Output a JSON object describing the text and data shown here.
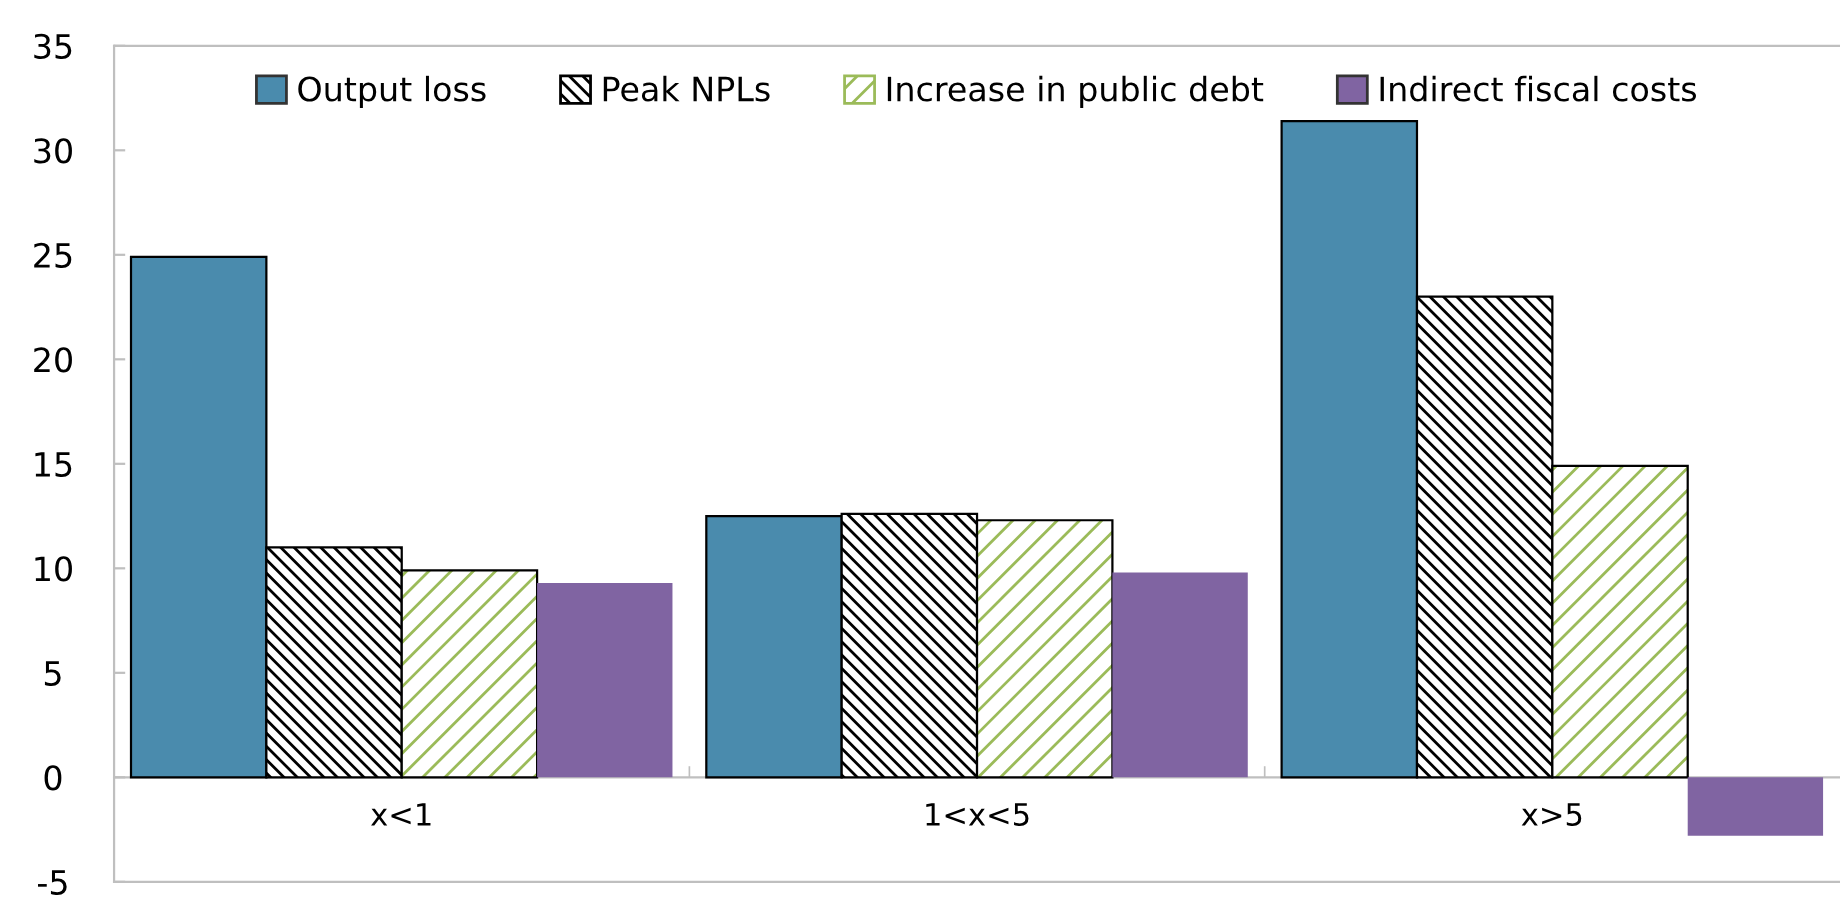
{
  "chart_data": {
    "type": "bar",
    "categories": [
      "x<1",
      "1<x<5",
      "x>5"
    ],
    "series": [
      {
        "name": "Output loss",
        "color": "#4a8bad",
        "values": [
          24.9,
          12.5,
          31.4
        ]
      },
      {
        "name": "Peak NPLs",
        "color": "#000000",
        "values": [
          11.0,
          12.6,
          23.0
        ]
      },
      {
        "name": "Increase in public debt",
        "color": "#9bbb59",
        "values": [
          9.9,
          12.3,
          14.9
        ]
      },
      {
        "name": "Indirect fiscal costs",
        "color": "#8064a2",
        "values": [
          9.3,
          9.8,
          -2.8
        ]
      }
    ],
    "ylim": [
      -5,
      35
    ],
    "yticks": [
      -5,
      0,
      5,
      10,
      15,
      20,
      25,
      30,
      35
    ],
    "grid": false,
    "legend": "top"
  }
}
